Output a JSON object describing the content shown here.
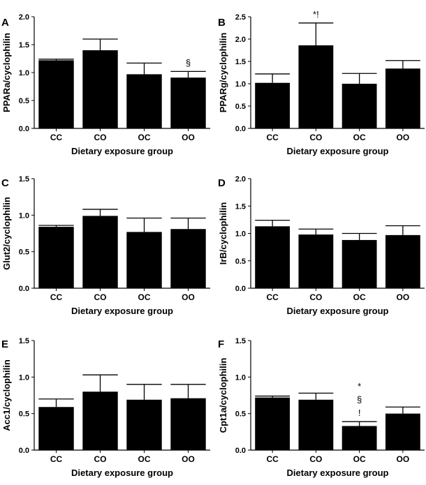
{
  "chart_data": [
    {
      "panel": "A",
      "type": "bar",
      "categories": [
        "CC",
        "CO",
        "OC",
        "OO"
      ],
      "values": [
        1.22,
        1.4,
        0.97,
        0.91
      ],
      "errors": [
        0.02,
        0.2,
        0.2,
        0.11
      ],
      "ylabel": "PPARa/cyclophilin",
      "xlabel": "Dietary exposure group",
      "ylim": [
        0,
        2.0
      ],
      "yticks": [
        0.0,
        0.5,
        1.0,
        1.5,
        2.0
      ],
      "ytick_labels": [
        "0.0",
        "0.5",
        "1.0",
        "1.5",
        "2.0"
      ],
      "annotations": [
        {
          "category": "OO",
          "lines": [
            "§"
          ]
        }
      ]
    },
    {
      "panel": "B",
      "type": "bar",
      "categories": [
        "CC",
        "CO",
        "OC",
        "OO"
      ],
      "values": [
        1.02,
        1.86,
        1.0,
        1.34
      ],
      "errors": [
        0.2,
        0.5,
        0.23,
        0.18
      ],
      "ylabel": "PPARg/cyclophilin",
      "xlabel": "Dietary exposure group",
      "ylim": [
        0,
        2.5
      ],
      "yticks": [
        0.0,
        0.5,
        1.0,
        1.5,
        2.0,
        2.5
      ],
      "ytick_labels": [
        "0.0",
        "0.5",
        "1.0",
        "1.5",
        "2.0",
        "2.5"
      ],
      "annotations": [
        {
          "category": "CO",
          "lines": [
            "*!"
          ]
        }
      ]
    },
    {
      "panel": "C",
      "type": "bar",
      "categories": [
        "CC",
        "CO",
        "OC",
        "OO"
      ],
      "values": [
        0.84,
        0.99,
        0.77,
        0.81
      ],
      "errors": [
        0.02,
        0.09,
        0.19,
        0.15
      ],
      "ylabel": "Glut2/cyclophilin",
      "xlabel": "Dietary exposure group",
      "ylim": [
        0,
        1.5
      ],
      "yticks": [
        0.0,
        0.5,
        1.0,
        1.5
      ],
      "ytick_labels": [
        "0.0",
        "0.5",
        "1.0",
        "1.5"
      ],
      "annotations": []
    },
    {
      "panel": "D",
      "type": "bar",
      "categories": [
        "CC",
        "CO",
        "OC",
        "OO"
      ],
      "values": [
        1.13,
        0.98,
        0.88,
        0.97
      ],
      "errors": [
        0.11,
        0.1,
        0.12,
        0.17
      ],
      "ylabel": "IrB/cyclophilin",
      "xlabel": "Dietary exposure group",
      "ylim": [
        0,
        2.0
      ],
      "yticks": [
        0.0,
        0.5,
        1.0,
        1.5,
        2.0
      ],
      "ytick_labels": [
        "0.0",
        "0.5",
        "1.0",
        "1.5",
        "2.0"
      ],
      "annotations": []
    },
    {
      "panel": "E",
      "type": "bar",
      "categories": [
        "CC",
        "CO",
        "OC",
        "OO"
      ],
      "values": [
        0.59,
        0.8,
        0.69,
        0.71
      ],
      "errors": [
        0.11,
        0.23,
        0.21,
        0.19
      ],
      "ylabel": "Acc1/cyclophilin",
      "xlabel": "Dietary exposure group",
      "ylim": [
        0,
        1.5
      ],
      "yticks": [
        0.0,
        0.5,
        1.0,
        1.5
      ],
      "ytick_labels": [
        "0.0",
        "0.5",
        "1.0",
        "1.5"
      ],
      "annotations": []
    },
    {
      "panel": "F",
      "type": "bar",
      "categories": [
        "CC",
        "CO",
        "OC",
        "OO"
      ],
      "values": [
        0.72,
        0.69,
        0.33,
        0.5
      ],
      "errors": [
        0.02,
        0.09,
        0.06,
        0.09
      ],
      "ylabel": "Cpt1a/cyclophilin",
      "xlabel": "Dietary exposure group",
      "ylim": [
        0,
        1.5
      ],
      "yticks": [
        0.0,
        0.5,
        1.0,
        1.5
      ],
      "ytick_labels": [
        "0.0",
        "0.5",
        "1.0",
        "1.5"
      ],
      "annotations": [
        {
          "category": "OC",
          "lines": [
            "*",
            "§",
            "!"
          ]
        }
      ]
    }
  ]
}
